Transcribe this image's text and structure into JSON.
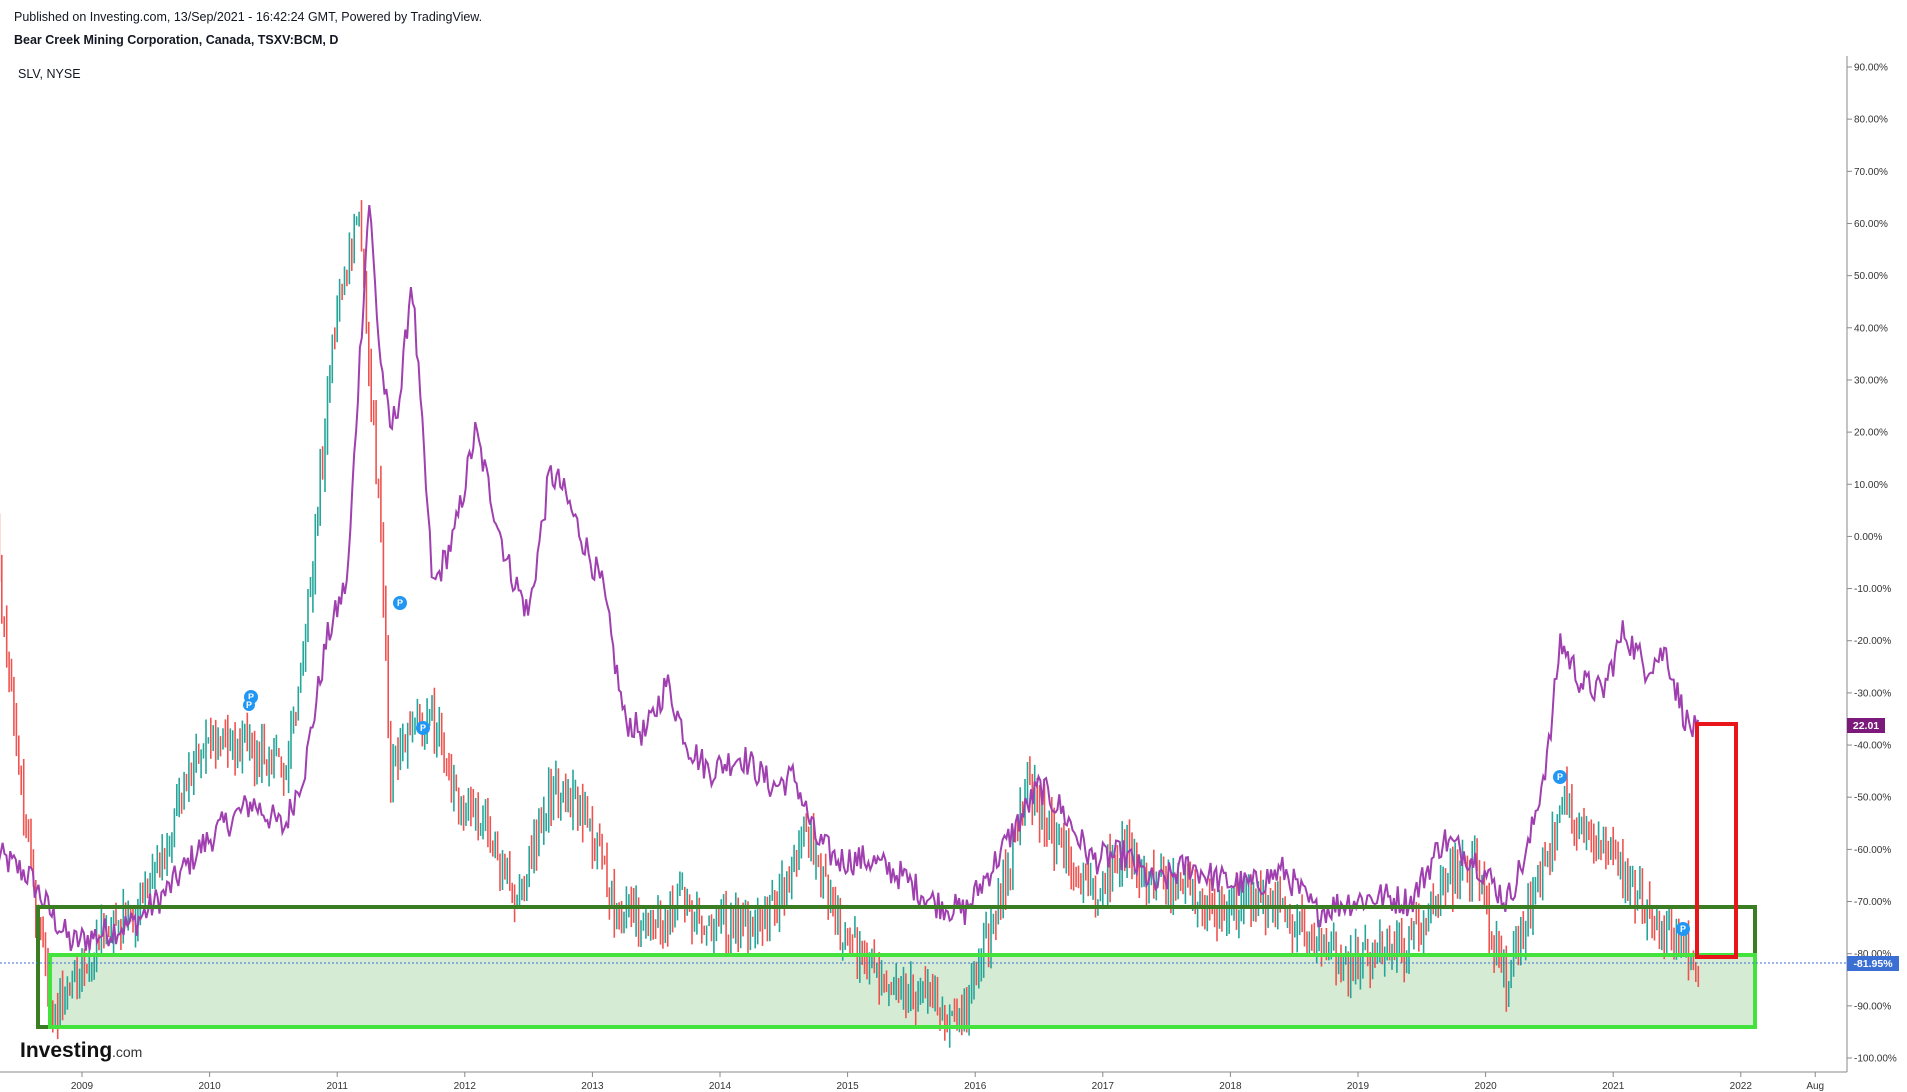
{
  "header": {
    "published": "Published on Investing.com, 13/Sep/2021 - 16:42:24 GMT, Powered by TradingView.",
    "symbol": "Bear Creek Mining Corporation, Canada, TSXV:BCM, D",
    "comparison": "SLV, NYSE"
  },
  "logo": {
    "text": "Investing",
    "suffix": ".com"
  },
  "colors": {
    "bcm_up": "#26a69a",
    "bcm_down": "#ef5350",
    "slv_line": "#a040b0",
    "dark_green_box": "#3a7d22",
    "light_green_box": "#44e23c",
    "light_green_fill": "#d6ebd3",
    "red_box": "#e8161a",
    "slv_tag": "#7b1a7b",
    "bcm_tag": "#3b6fd4",
    "marker": "#2196f3"
  },
  "chart_data": {
    "type": "line",
    "title": "Bear Creek Mining Corporation, Canada, TSXV:BCM, D",
    "ylabel": "",
    "xlabel": "",
    "y_unit": "percent change",
    "ylim": [
      -100,
      90
    ],
    "y_ticks": [
      "90.00%",
      "80.00%",
      "70.00%",
      "60.00%",
      "50.00%",
      "40.00%",
      "30.00%",
      "20.00%",
      "10.00%",
      "0.00%",
      "-10.00%",
      "-20.00%",
      "-30.00%",
      "-40.00%",
      "-50.00%",
      "-60.00%",
      "-70.00%",
      "-80.00%",
      "-90.00%",
      "-100.00%"
    ],
    "x_ticks": [
      "2009",
      "2010",
      "2011",
      "2012",
      "2013",
      "2014",
      "2015",
      "2016",
      "2017",
      "2018",
      "2019",
      "2020",
      "2021",
      "2022",
      "Aug"
    ],
    "xlim": [
      "2008-05",
      "2022-08"
    ],
    "grid": false,
    "series": [
      {
        "name": "SLV",
        "style": "line",
        "points": [
          [
            "2008-05",
            -61
          ],
          [
            "2008-08",
            -65
          ],
          [
            "2008-10",
            -72
          ],
          [
            "2008-12",
            -78
          ],
          [
            "2009-03",
            -76
          ],
          [
            "2009-06",
            -74
          ],
          [
            "2009-09",
            -68
          ],
          [
            "2009-12",
            -60
          ],
          [
            "2010-02",
            -56
          ],
          [
            "2010-05",
            -51
          ],
          [
            "2010-08",
            -56
          ],
          [
            "2010-10",
            -44
          ],
          [
            "2010-12",
            -20
          ],
          [
            "2011-02",
            -8
          ],
          [
            "2011-03",
            30
          ],
          [
            "2011-04",
            65
          ],
          [
            "2011-05",
            35
          ],
          [
            "2011-06",
            20
          ],
          [
            "2011-07",
            28
          ],
          [
            "2011-08",
            50
          ],
          [
            "2011-09",
            20
          ],
          [
            "2011-10",
            -10
          ],
          [
            "2011-12",
            0
          ],
          [
            "2012-02",
            20
          ],
          [
            "2012-05",
            -5
          ],
          [
            "2012-07",
            -15
          ],
          [
            "2012-09",
            12
          ],
          [
            "2012-10",
            10
          ],
          [
            "2012-12",
            0
          ],
          [
            "2013-02",
            -10
          ],
          [
            "2013-04",
            -35
          ],
          [
            "2013-06",
            -38
          ],
          [
            "2013-08",
            -28
          ],
          [
            "2013-10",
            -40
          ],
          [
            "2013-12",
            -45
          ],
          [
            "2014-03",
            -42
          ],
          [
            "2014-06",
            -48
          ],
          [
            "2014-08",
            -46
          ],
          [
            "2014-10",
            -58
          ],
          [
            "2014-12",
            -62
          ],
          [
            "2015-03",
            -62
          ],
          [
            "2015-06",
            -65
          ],
          [
            "2015-09",
            -70
          ],
          [
            "2015-12",
            -72
          ],
          [
            "2016-03",
            -62
          ],
          [
            "2016-07",
            -48
          ],
          [
            "2016-09",
            -52
          ],
          [
            "2016-12",
            -62
          ],
          [
            "2017-03",
            -61
          ],
          [
            "2017-06",
            -67
          ],
          [
            "2017-09",
            -63
          ],
          [
            "2017-12",
            -66
          ],
          [
            "2018-03",
            -67
          ],
          [
            "2018-06",
            -64
          ],
          [
            "2018-09",
            -72
          ],
          [
            "2018-12",
            -70
          ],
          [
            "2019-03",
            -69
          ],
          [
            "2019-06",
            -70
          ],
          [
            "2019-09",
            -58
          ],
          [
            "2019-12",
            -62
          ],
          [
            "2020-03",
            -70
          ],
          [
            "2020-05",
            -60
          ],
          [
            "2020-07",
            -40
          ],
          [
            "2020-08",
            -20
          ],
          [
            "2020-10",
            -28
          ],
          [
            "2020-12",
            -30
          ],
          [
            "2021-02",
            -18
          ],
          [
            "2021-04",
            -25
          ],
          [
            "2021-06",
            -22
          ],
          [
            "2021-07",
            -30
          ],
          [
            "2021-08",
            -36
          ],
          [
            "2021-09",
            -38
          ]
        ]
      },
      {
        "name": "BCM",
        "style": "candlestick",
        "points": [
          [
            "2008-05",
            -2
          ],
          [
            "2008-06",
            -25
          ],
          [
            "2008-08",
            -60
          ],
          [
            "2008-10",
            -90
          ],
          [
            "2008-12",
            -88
          ],
          [
            "2009-03",
            -75
          ],
          [
            "2009-06",
            -73
          ],
          [
            "2009-09",
            -60
          ],
          [
            "2009-12",
            -40
          ],
          [
            "2010-03",
            -38
          ],
          [
            "2010-06",
            -42
          ],
          [
            "2010-08",
            -45
          ],
          [
            "2010-10",
            -20
          ],
          [
            "2011-01",
            45
          ],
          [
            "2011-03",
            60
          ],
          [
            "2011-05",
            5
          ],
          [
            "2011-06",
            -45
          ],
          [
            "2011-08",
            -38
          ],
          [
            "2011-10",
            -35
          ],
          [
            "2011-12",
            -50
          ],
          [
            "2012-03",
            -55
          ],
          [
            "2012-06",
            -70
          ],
          [
            "2012-09",
            -48
          ],
          [
            "2012-12",
            -52
          ],
          [
            "2013-03",
            -70
          ],
          [
            "2013-06",
            -75
          ],
          [
            "2013-09",
            -70
          ],
          [
            "2013-12",
            -75
          ],
          [
            "2014-03",
            -75
          ],
          [
            "2014-06",
            -72
          ],
          [
            "2014-09",
            -55
          ],
          [
            "2014-12",
            -75
          ],
          [
            "2015-03",
            -82
          ],
          [
            "2015-06",
            -86
          ],
          [
            "2015-09",
            -90
          ],
          [
            "2015-12",
            -92
          ],
          [
            "2016-03",
            -72
          ],
          [
            "2016-06",
            -48
          ],
          [
            "2016-09",
            -60
          ],
          [
            "2016-12",
            -68
          ],
          [
            "2017-03",
            -60
          ],
          [
            "2017-06",
            -68
          ],
          [
            "2017-09",
            -68
          ],
          [
            "2017-12",
            -72
          ],
          [
            "2018-03",
            -70
          ],
          [
            "2018-06",
            -72
          ],
          [
            "2018-09",
            -78
          ],
          [
            "2018-12",
            -83
          ],
          [
            "2019-03",
            -80
          ],
          [
            "2019-06",
            -78
          ],
          [
            "2019-09",
            -67
          ],
          [
            "2019-12",
            -63
          ],
          [
            "2020-03",
            -87
          ],
          [
            "2020-05",
            -72
          ],
          [
            "2020-07",
            -60
          ],
          [
            "2020-08",
            -50
          ],
          [
            "2020-10",
            -55
          ],
          [
            "2020-12",
            -60
          ],
          [
            "2021-03",
            -68
          ],
          [
            "2021-05",
            -73
          ],
          [
            "2021-07",
            -78
          ],
          [
            "2021-09",
            -82
          ]
        ]
      }
    ],
    "annotations": {
      "price_tags": [
        "22.01",
        "-81.95%"
      ],
      "markers": [
        "P",
        "P",
        "P",
        "P",
        "P",
        "P"
      ],
      "boxes": [
        "dark-green range",
        "light-green support zone",
        "red target box"
      ]
    }
  }
}
